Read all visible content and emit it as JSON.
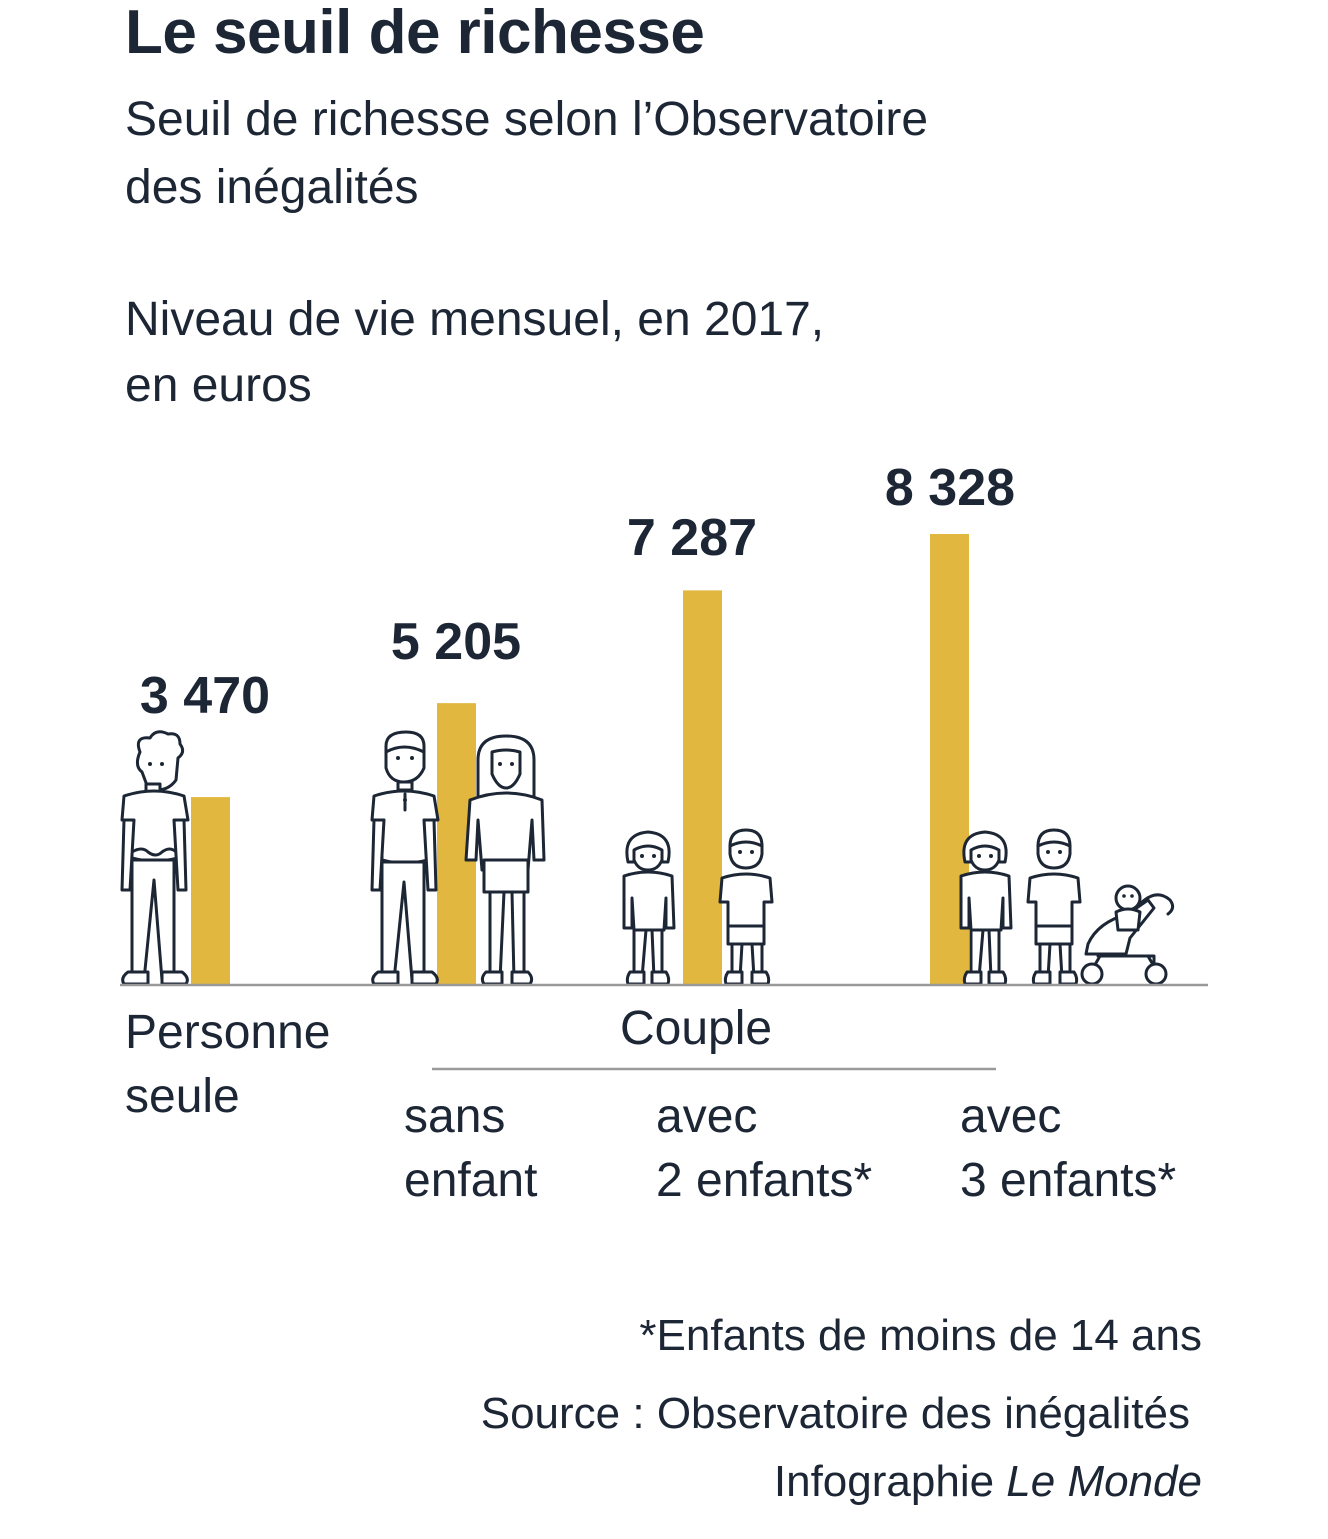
{
  "chart_data": {
    "type": "bar",
    "title": "Le seuil de richesse",
    "subtitle_lines": [
      "Seuil de richesse selon l’Observatoire",
      "des inégalités"
    ],
    "unit_lines": [
      "Niveau de vie mensuel, en 2017,",
      "en euros"
    ],
    "categories": [
      "Personne seule",
      "Couple sans enfant",
      "Couple avec 2 enfants*",
      "Couple avec 3 enfants*"
    ],
    "values": [
      3470,
      5205,
      7287,
      8328
    ],
    "value_labels": [
      "3 470",
      "5 205",
      "7 287",
      "8 328"
    ],
    "bar_color": "#e2b740",
    "ylim": [
      0,
      8328
    ]
  },
  "labels": {
    "single_line1": "Personne",
    "single_line2": "seule",
    "couple": "Couple",
    "c1_line1": "sans",
    "c1_line2": "enfant",
    "c2_line1": "avec",
    "c2_line2": "2 enfants*",
    "c3_line1": "avec",
    "c3_line2": "3 enfants*"
  },
  "footer": {
    "note": "*Enfants de moins de 14 ans",
    "source": "Source :  Observatoire des inégalités",
    "credit_prefix": "Infographie ",
    "credit_outlet": "Le Monde"
  },
  "colors": {
    "text": "#1c2634",
    "baseline": "#9a9a9a",
    "bar": "#e2b740"
  }
}
